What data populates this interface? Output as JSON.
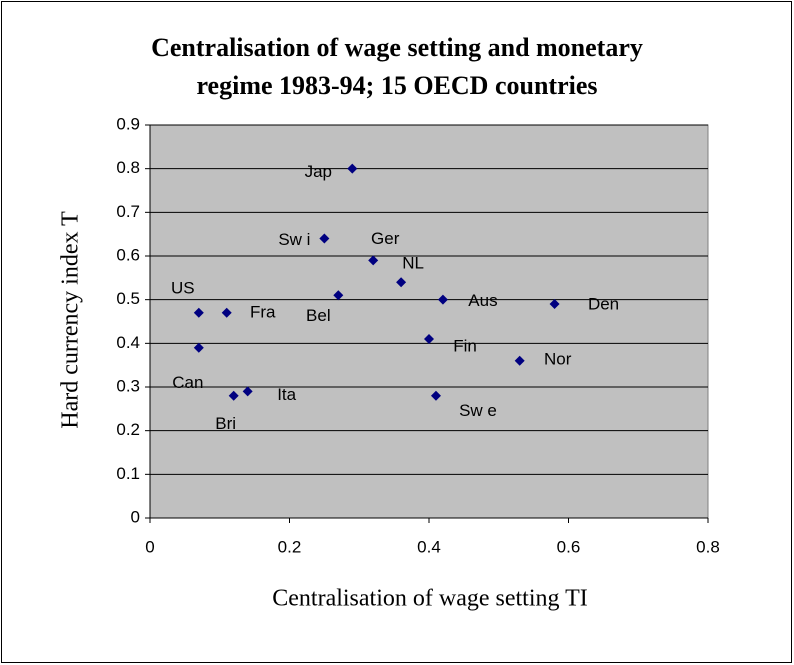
{
  "chart_data": {
    "type": "scatter",
    "title": "Centralisation of wage setting and monetary regime 1983-94; 15 OECD countries",
    "xlabel": "Centralisation of wage setting TI",
    "ylabel": "Hard currency index T",
    "color": "#000080",
    "point_labels": [
      "Jap",
      "Sw i",
      "Ger",
      "NL",
      "Bel",
      "Aus",
      "Den",
      "US",
      "Fra",
      "Can",
      "Fin",
      "Nor",
      "Ita",
      "Bri",
      "Sw e"
    ],
    "x": [
      0.29,
      0.25,
      0.32,
      0.36,
      0.27,
      0.42,
      0.58,
      0.07,
      0.11,
      0.07,
      0.4,
      0.53,
      0.14,
      0.12,
      0.41
    ],
    "values": [
      0.8,
      0.64,
      0.59,
      0.54,
      0.51,
      0.5,
      0.49,
      0.47,
      0.47,
      0.39,
      0.41,
      0.36,
      0.29,
      0.28,
      0.28
    ],
    "xlim": [
      0,
      0.8
    ],
    "xticks": [
      0,
      0.2,
      0.4,
      0.6,
      0.8
    ],
    "ylim": [
      0,
      0.9
    ],
    "yticks": [
      0,
      0.1,
      0.2,
      0.3,
      0.4,
      0.5,
      0.6,
      0.7,
      0.8,
      0.9
    ],
    "grid": true
  }
}
